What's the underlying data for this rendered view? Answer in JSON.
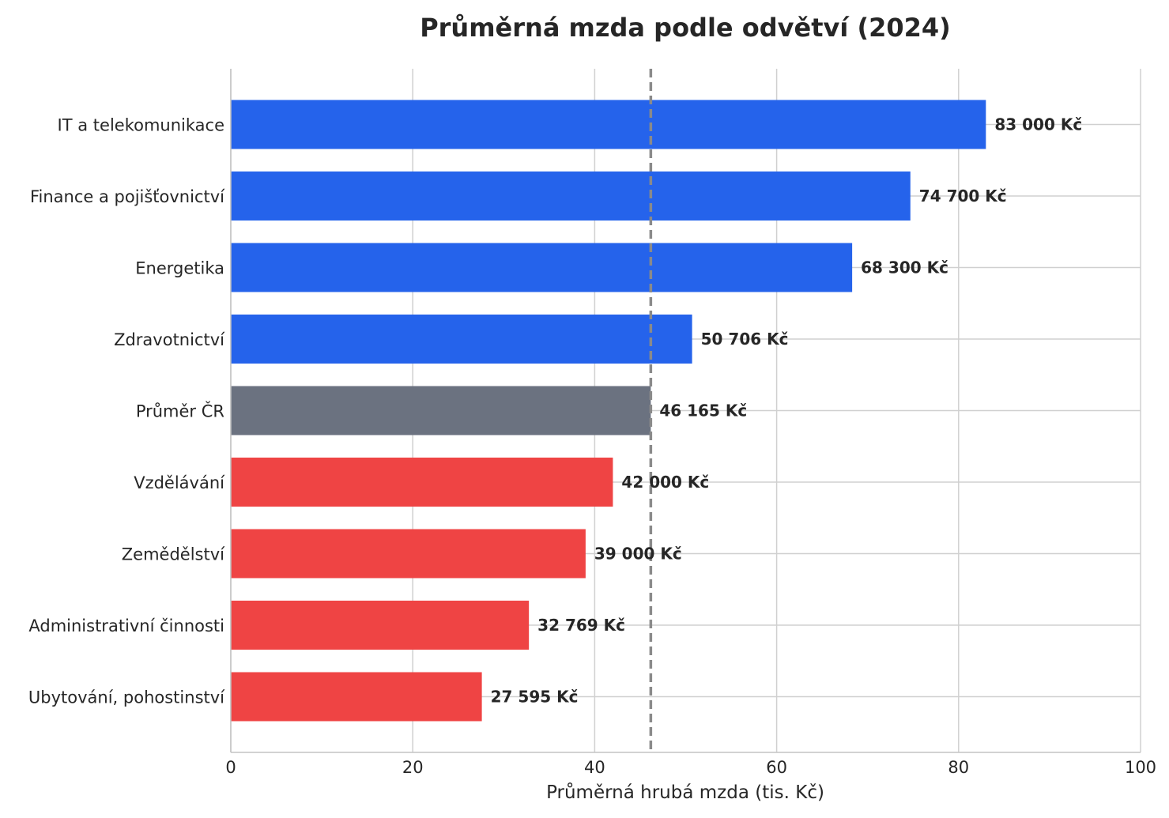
{
  "chart_data": {
    "type": "bar",
    "orientation": "horizontal",
    "title": "Průměrná mzda podle odvětví (2024)",
    "xlabel": "Průměrná hrubá mzda (tis. Kč)",
    "ylabel": "",
    "xlim": [
      0,
      100
    ],
    "xticks": [
      0,
      20,
      40,
      60,
      80,
      100
    ],
    "grid": true,
    "reference_line": {
      "value": 46.165,
      "style": "dashed",
      "color": "#8a8a8a"
    },
    "categories": [
      "IT a telekomunikace",
      "Finance a pojišťovnictví",
      "Energetika",
      "Zdravotnictví",
      "Průměr ČR",
      "Vzdělávání",
      "Zemědělství",
      "Administrativní činnosti",
      "Ubytování, pohostinství"
    ],
    "values": [
      83.0,
      74.7,
      68.3,
      50.706,
      46.165,
      42.0,
      39.0,
      32.769,
      27.595
    ],
    "value_labels": [
      "83 000 Kč",
      "74 700 Kč",
      "68 300 Kč",
      "50 706 Kč",
      "46 165 Kč",
      "42 000 Kč",
      "39 000 Kč",
      "32 769 Kč",
      "27 595 Kč"
    ],
    "colors": [
      "#2563eb",
      "#2563eb",
      "#2563eb",
      "#2563eb",
      "#6b7280",
      "#ef4444",
      "#ef4444",
      "#ef4444",
      "#ef4444"
    ]
  }
}
